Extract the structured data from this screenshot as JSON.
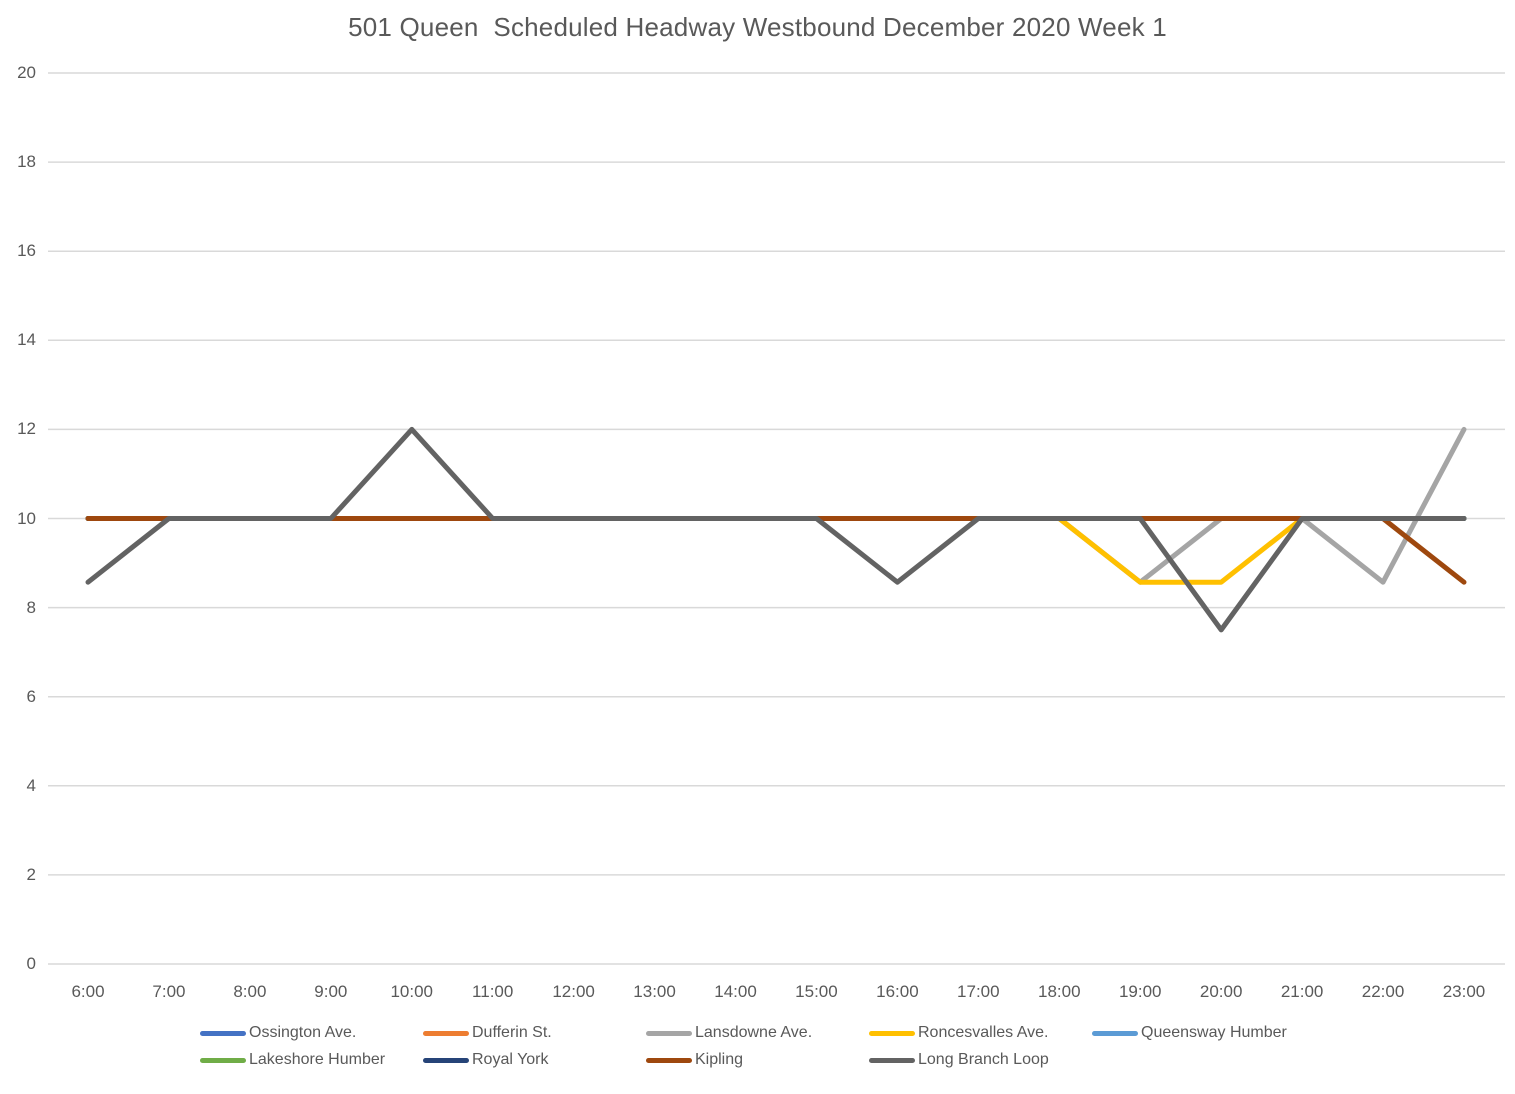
{
  "title": "501 Queen  Scheduled Headway Westbound December 2020 Week 1",
  "colors": {
    "grid": "#D9D9D9",
    "axis_text": "#595959",
    "title_text": "#595959"
  },
  "legend": {
    "position": "bottom",
    "items_per_row": 5
  },
  "chart_data": {
    "type": "line",
    "title": "501 Queen  Scheduled Headway Westbound December 2020 Week 1",
    "xlabel": "",
    "ylabel": "",
    "ylim": [
      0,
      20
    ],
    "ytick_step": 2,
    "grid": "horizontal",
    "legend_position": "bottom",
    "categories": [
      "6:00",
      "7:00",
      "8:00",
      "9:00",
      "10:00",
      "11:00",
      "12:00",
      "13:00",
      "14:00",
      "15:00",
      "16:00",
      "17:00",
      "18:00",
      "19:00",
      "20:00",
      "21:00",
      "22:00",
      "23:00"
    ],
    "series": [
      {
        "name": "Ossington Ave.",
        "color": "#4472C4",
        "values": [
          10,
          10,
          10,
          10,
          10,
          10,
          10,
          10,
          10,
          10,
          10,
          10,
          10,
          10,
          10,
          10,
          10,
          10
        ]
      },
      {
        "name": "Dufferin St.",
        "color": "#ED7D31",
        "values": [
          10,
          10,
          10,
          10,
          10,
          10,
          10,
          10,
          10,
          10,
          10,
          10,
          10,
          10,
          10,
          10,
          10,
          10
        ]
      },
      {
        "name": "Lansdowne Ave.",
        "color": "#A5A5A5",
        "values": [
          10,
          10,
          10,
          10,
          10,
          10,
          10,
          10,
          10,
          10,
          10,
          10,
          10,
          8.57,
          10,
          10,
          8.57,
          12
        ]
      },
      {
        "name": "Roncesvalles Ave.",
        "color": "#FFC000",
        "values": [
          10,
          10,
          10,
          10,
          10,
          10,
          10,
          10,
          10,
          10,
          10,
          10,
          10,
          8.57,
          8.57,
          10,
          10,
          10
        ]
      },
      {
        "name": "Queensway Humber",
        "color": "#5B9BD5",
        "values": [
          10,
          10,
          10,
          10,
          10,
          10,
          10,
          10,
          10,
          10,
          10,
          10,
          10,
          10,
          10,
          10,
          10,
          10
        ]
      },
      {
        "name": "Lakeshore Humber",
        "color": "#70AD47",
        "values": [
          10,
          10,
          10,
          10,
          10,
          10,
          10,
          10,
          10,
          10,
          10,
          10,
          10,
          10,
          10,
          10,
          10,
          10
        ]
      },
      {
        "name": "Royal York",
        "color": "#264478",
        "values": [
          10,
          10,
          10,
          10,
          10,
          10,
          10,
          10,
          10,
          10,
          10,
          10,
          10,
          10,
          10,
          10,
          10,
          10
        ]
      },
      {
        "name": "Kipling",
        "color": "#9E480E",
        "values": [
          10,
          10,
          10,
          10,
          10,
          10,
          10,
          10,
          10,
          10,
          10,
          10,
          10,
          10,
          10,
          10,
          10,
          8.57
        ]
      },
      {
        "name": "Long Branch Loop",
        "color": "#636363",
        "values": [
          8.57,
          10,
          10,
          10,
          12,
          10,
          10,
          10,
          10,
          10,
          8.57,
          10,
          10,
          10,
          7.5,
          10,
          10,
          10
        ]
      }
    ]
  }
}
